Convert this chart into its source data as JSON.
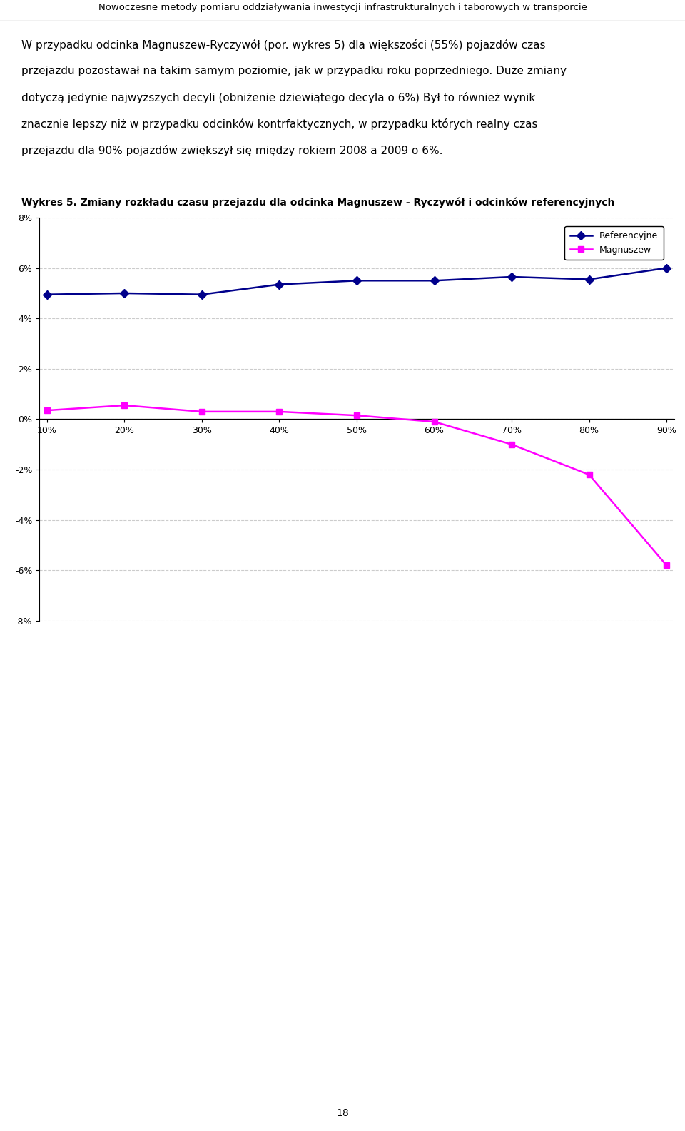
{
  "page_title": "Nowoczesne metody pomiaru oddziaływania inwestycji infrastrukturalnych i taborowych w transporcie",
  "body_line1": "W przypadku odcinka Magnuszew-Ryczywół (por. wykres 5) dla większości (55%) pojazdów czas",
  "body_line2": "przejazdu pozostawał na takim samym poziomie, jak w przypadku roku poprzedniego. Duże zmiany",
  "body_line3": "dotyczą jedynie najwyższych decyli (obniżenie dziewiątego decyla o 6%) Był to również wynik",
  "body_line4": "znacznie lepszy niż w przypadku odcinków kontrfaktycznych, w przypadku których realny czas",
  "body_line5": "przejazdu dla 90% pojazdów zwiększył się między rokiem 2008 a 2009 o 6%.",
  "chart_title": "Wykres 5. Zmiany rozkładu czasu przejazdu dla odcinka Magnuszew - Ryczywół i odcinków referencyjnych",
  "x_values": [
    10,
    20,
    30,
    40,
    50,
    60,
    70,
    80,
    90
  ],
  "x_labels": [
    "10%",
    "20%",
    "30%",
    "40%",
    "50%",
    "60%",
    "70%",
    "80%",
    "90%"
  ],
  "referencyjne_values": [
    4.95,
    5.0,
    4.95,
    5.35,
    5.5,
    5.5,
    5.65,
    5.55,
    6.0
  ],
  "magnuszew_values": [
    0.35,
    0.55,
    0.3,
    0.3,
    0.15,
    -0.1,
    -1.0,
    -2.2,
    -5.8
  ],
  "referencyjne_color": "#00008B",
  "magnuszew_color": "#FF00FF",
  "ylim": [
    -8,
    8
  ],
  "yticks": [
    -8,
    -6,
    -4,
    -2,
    0,
    2,
    4,
    6,
    8
  ],
  "ytick_labels": [
    "-8%",
    "-6%",
    "-4%",
    "-2%",
    "0%",
    "2%",
    "4%",
    "6%",
    "8%"
  ],
  "legend_referencyjne": "Referencyjne",
  "legend_magnuszew": "Magnuszew",
  "page_number": "18",
  "background_color": "#FFFFFF",
  "grid_color": "#CCCCCC",
  "line_width": 1.8,
  "marker_size": 6
}
